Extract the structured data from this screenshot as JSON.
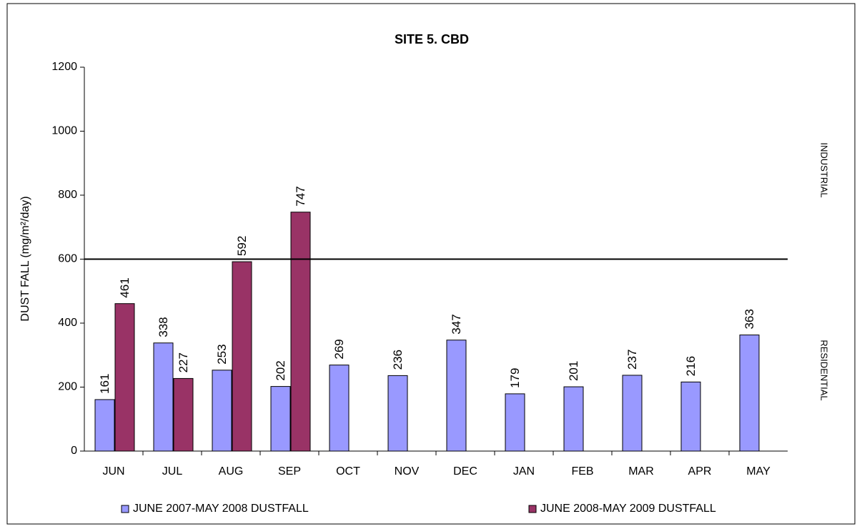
{
  "chart_data": {
    "type": "bar",
    "title": "SITE 5. CBD",
    "y_label": "DUST FALL  (mg/m²/day)",
    "categories": [
      "JUN",
      "JUL",
      "AUG",
      "SEP",
      "OCT",
      "NOV",
      "DEC",
      "JAN",
      "FEB",
      "MAR",
      "APR",
      "MAY"
    ],
    "series": [
      {
        "name": "JUNE 2007-MAY 2008 DUSTFALL",
        "color": "#9999ff",
        "values": [
          161,
          338,
          253,
          202,
          269,
          236,
          347,
          179,
          201,
          237,
          216,
          363
        ]
      },
      {
        "name": "JUNE 2008-MAY 2009 DUSTFALL",
        "color": "#993366",
        "values": [
          461,
          227,
          592,
          747,
          null,
          null,
          null,
          null,
          null,
          null,
          null,
          null
        ]
      }
    ],
    "ylim": [
      0,
      1200
    ],
    "yticks": [
      0,
      200,
      400,
      600,
      800,
      1000,
      1200
    ],
    "reference_line": 600,
    "annotations": [
      "INDUSTRIAL",
      "RESIDENTIAL"
    ],
    "legend": "bottom"
  }
}
